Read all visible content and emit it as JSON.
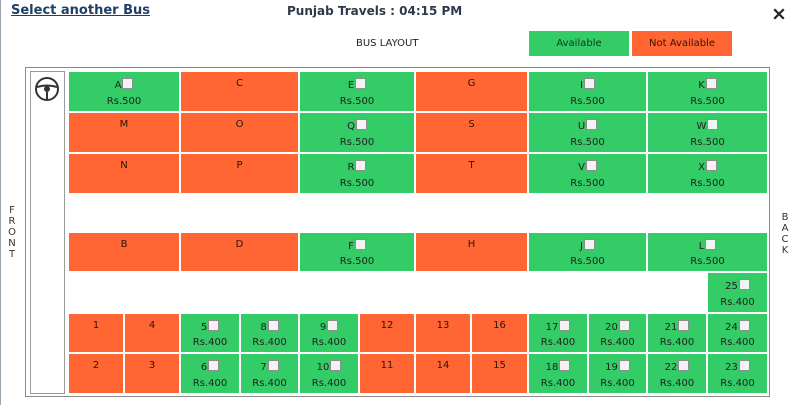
{
  "header": {
    "select_link": "Select another Bus",
    "title": "Punjab Travels : 04:15 PM"
  },
  "layout_label": "BUS LAYOUT",
  "legend": {
    "available": "Available",
    "not_available": "Not Available"
  },
  "sides": {
    "front": "FRONT",
    "back": "BACK"
  },
  "colors": {
    "available": "#33cc66",
    "not_available": "#ff6633"
  },
  "icons": {
    "close": "close-icon",
    "steering": "steering-wheel-icon"
  },
  "upper_deck": [
    [
      {
        "label": "A",
        "available": true,
        "price": "Rs.500"
      },
      {
        "label": "C",
        "available": false
      },
      {
        "label": "E",
        "available": true,
        "price": "Rs.500"
      },
      {
        "label": "G",
        "available": false
      },
      {
        "label": "I",
        "available": true,
        "price": "Rs.500"
      },
      {
        "label": "K",
        "available": true,
        "price": "Rs.500"
      }
    ],
    [
      {
        "label": "M",
        "available": false
      },
      {
        "label": "O",
        "available": false
      },
      {
        "label": "Q",
        "available": true,
        "price": "Rs.500"
      },
      {
        "label": "S",
        "available": false
      },
      {
        "label": "U",
        "available": true,
        "price": "Rs.500"
      },
      {
        "label": "W",
        "available": true,
        "price": "Rs.500"
      }
    ],
    [
      {
        "label": "N",
        "available": false
      },
      {
        "label": "P",
        "available": false
      },
      {
        "label": "R",
        "available": true,
        "price": "Rs.500"
      },
      {
        "label": "T",
        "available": false
      },
      {
        "label": "V",
        "available": true,
        "price": "Rs.500"
      },
      {
        "label": "X",
        "available": true,
        "price": "Rs.500"
      }
    ],
    [
      {
        "label": "B",
        "available": false
      },
      {
        "label": "D",
        "available": false
      },
      {
        "label": "F",
        "available": true,
        "price": "Rs.500"
      },
      {
        "label": "H",
        "available": false
      },
      {
        "label": "J",
        "available": true,
        "price": "Rs.500"
      },
      {
        "label": "L",
        "available": true,
        "price": "Rs.500"
      }
    ]
  ],
  "lower_deck": {
    "single": {
      "label": "25",
      "available": true,
      "price": "Rs.400"
    },
    "rows": [
      [
        {
          "label": "1",
          "available": false
        },
        {
          "label": "4",
          "available": false
        },
        {
          "label": "5",
          "available": true,
          "price": "Rs.400"
        },
        {
          "label": "8",
          "available": true,
          "price": "Rs.400"
        },
        {
          "label": "9",
          "available": true,
          "price": "Rs.400"
        },
        {
          "label": "12",
          "available": false
        },
        {
          "label": "13",
          "available": false
        },
        {
          "label": "16",
          "available": false
        },
        {
          "label": "17",
          "available": true,
          "price": "Rs.400"
        },
        {
          "label": "20",
          "available": true,
          "price": "Rs.400"
        },
        {
          "label": "21",
          "available": true,
          "price": "Rs.400"
        },
        {
          "label": "24",
          "available": true,
          "price": "Rs.400"
        }
      ],
      [
        {
          "label": "2",
          "available": false
        },
        {
          "label": "3",
          "available": false
        },
        {
          "label": "6",
          "available": true,
          "price": "Rs.400"
        },
        {
          "label": "7",
          "available": true,
          "price": "Rs.400"
        },
        {
          "label": "10",
          "available": true,
          "price": "Rs.400"
        },
        {
          "label": "11",
          "available": false
        },
        {
          "label": "14",
          "available": false
        },
        {
          "label": "15",
          "available": false
        },
        {
          "label": "18",
          "available": true,
          "price": "Rs.400"
        },
        {
          "label": "19",
          "available": true,
          "price": "Rs.400"
        },
        {
          "label": "22",
          "available": true,
          "price": "Rs.400"
        },
        {
          "label": "23",
          "available": true,
          "price": "Rs.400"
        }
      ]
    ]
  }
}
